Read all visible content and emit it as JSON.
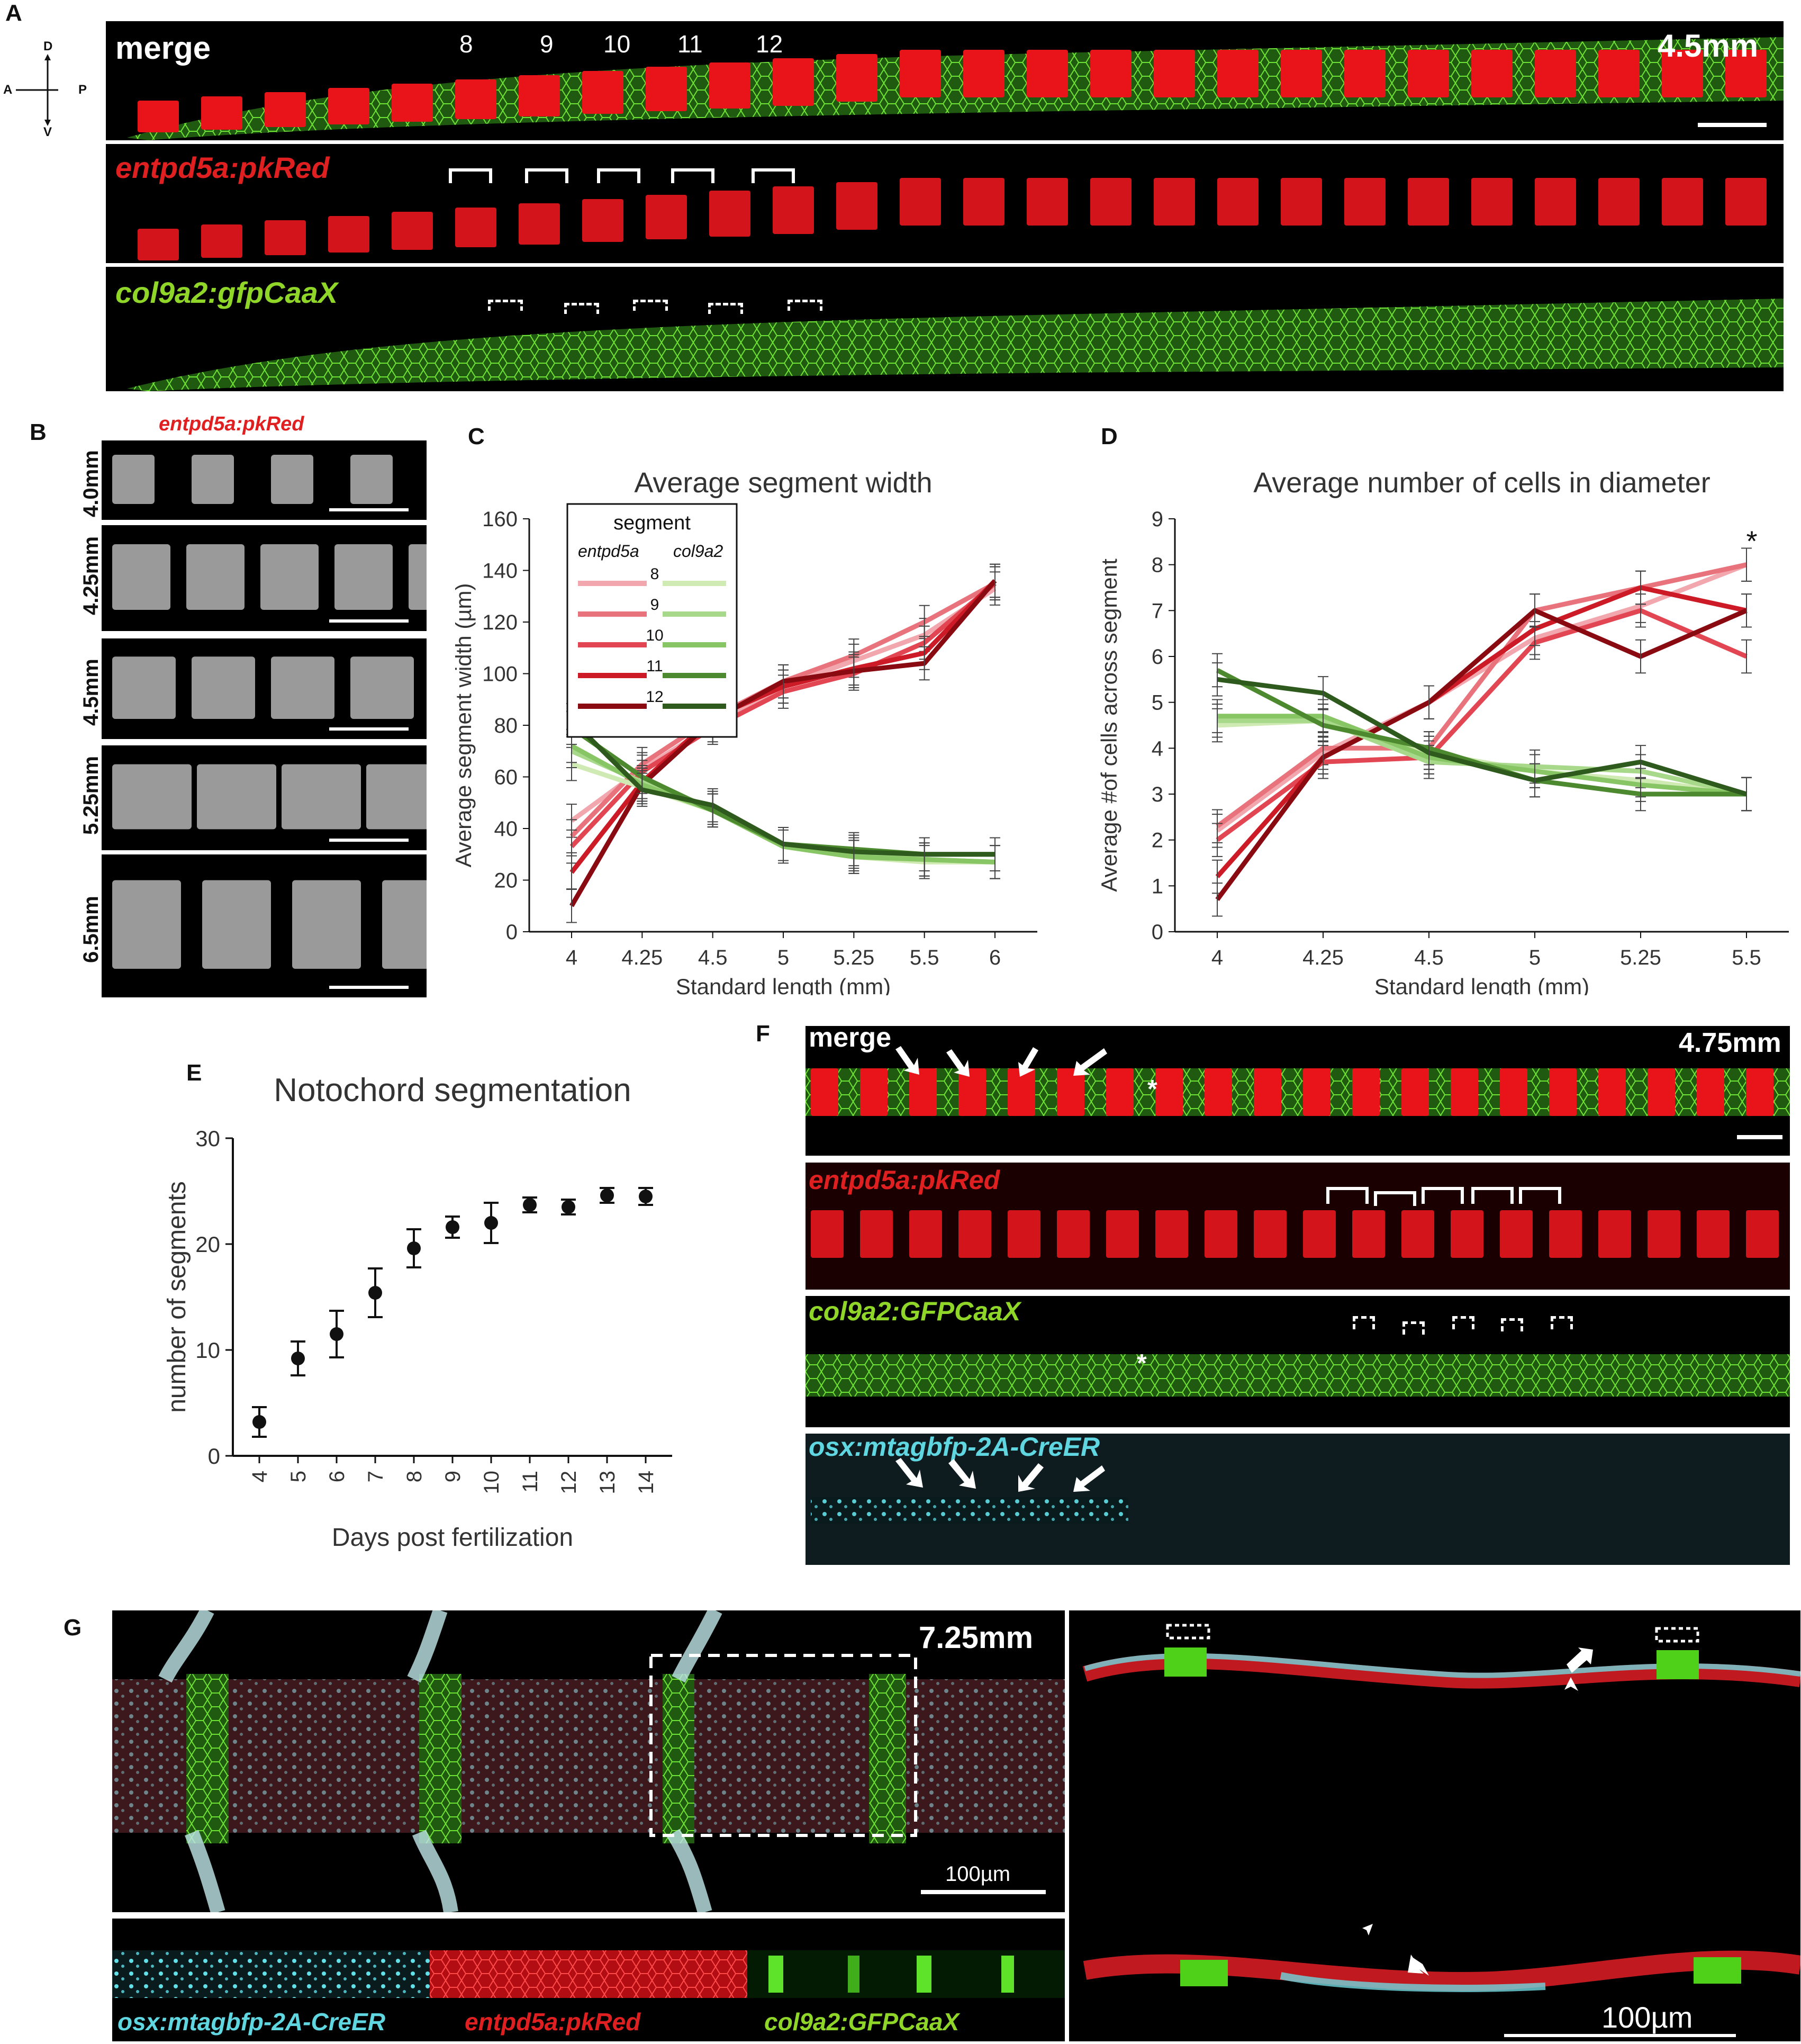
{
  "panels": {
    "A": {
      "letter": "A",
      "axis": {
        "d": "D",
        "v": "V",
        "a": "A",
        "p": "P"
      },
      "merge_label": "merge",
      "size_label": "4.5mm",
      "segment_numbers": [
        "8",
        "9",
        "10",
        "11",
        "12"
      ],
      "red_label": "entpd5a:pkRed",
      "green_label": "col9a2:gfpCaaX"
    },
    "B": {
      "letter": "B",
      "title": "entpd5a:pkRed",
      "stages": [
        "4.0mm",
        "4.25mm",
        "4.5mm",
        "5.25mm",
        "6.5mm"
      ]
    },
    "C": {
      "letter": "C"
    },
    "D": {
      "letter": "D"
    },
    "E": {
      "letter": "E"
    },
    "F": {
      "letter": "F",
      "merge_label": "merge",
      "size_label": "4.75mm",
      "red_label": "entpd5a:pkRed",
      "green_label": "col9a2:GFPCaaX",
      "cyan_label": "osx:mtagbfp-2A-CreER",
      "asterisk": "*"
    },
    "G": {
      "letter": "G",
      "size_label": "7.25mm",
      "scale_left": "100µm",
      "scale_right": "100µm",
      "cyan_label": "osx:mtagbfp-2A-CreER",
      "red_label": "entpd5a:pkRed",
      "green_label": "col9a2:GFPCaaX"
    }
  },
  "colors": {
    "red": "#e8141a",
    "green": "#4fd11a",
    "cyan": "#62e0e8",
    "red_label": "#e02020",
    "green_label": "#8fd629",
    "cyan_label": "#5fd6e0"
  },
  "chart_data": [
    {
      "panel": "C",
      "type": "line",
      "title": "Average segment width",
      "xlabel": "Standard length (mm)",
      "ylabel": "Average segment width (µm)",
      "categories": [
        "4",
        "4.25",
        "4.5",
        "5",
        "5.25",
        "5.5",
        "6"
      ],
      "ylim": [
        0,
        160
      ],
      "yticks": [
        0,
        20,
        40,
        60,
        80,
        100,
        120,
        140,
        160
      ],
      "legend_title": "segment",
      "legend_cols": [
        "entpd5a",
        "col9a2"
      ],
      "legend_rows": [
        "8",
        "9",
        "10",
        "11",
        "12"
      ],
      "series": [
        {
          "name": "8",
          "group": "entpd5a",
          "color": "#f2a6ad",
          "values": [
            43,
            63,
            80,
            95,
            105,
            115,
            133
          ]
        },
        {
          "name": "9",
          "group": "entpd5a",
          "color": "#e9737c",
          "values": [
            37,
            65,
            83,
            97,
            107,
            120,
            135
          ]
        },
        {
          "name": "10",
          "group": "entpd5a",
          "color": "#e14652",
          "values": [
            33,
            62,
            79,
            93,
            100,
            112,
            135
          ]
        },
        {
          "name": "11",
          "group": "entpd5a",
          "color": "#cc1a26",
          "values": [
            23,
            58,
            83,
            95,
            102,
            108,
            136
          ]
        },
        {
          "name": "12",
          "group": "entpd5a",
          "color": "#8a0a12",
          "values": [
            10,
            57,
            82,
            97,
            101,
            104,
            136
          ]
        },
        {
          "name": "8",
          "group": "col9a2",
          "color": "#cfeab3",
          "values": [
            65,
            56,
            47,
            34,
            29,
            27,
            27
          ]
        },
        {
          "name": "9",
          "group": "col9a2",
          "color": "#a8d88a",
          "values": [
            70,
            58,
            48,
            34,
            30,
            28,
            27
          ]
        },
        {
          "name": "10",
          "group": "col9a2",
          "color": "#88c565",
          "values": [
            72,
            57,
            47,
            33,
            29,
            28,
            27
          ]
        },
        {
          "name": "11",
          "group": "col9a2",
          "color": "#4d8a2f",
          "values": [
            79,
            60,
            47,
            34,
            32,
            30,
            30
          ]
        },
        {
          "name": "12",
          "group": "col9a2",
          "color": "#2e5a1d",
          "values": [
            82,
            55,
            49,
            34,
            31,
            30,
            30
          ]
        }
      ]
    },
    {
      "panel": "D",
      "type": "line",
      "title": "Average number of cells in diameter",
      "xlabel": "Standard length (mm)",
      "ylabel": "Average #of cells across segment",
      "categories": [
        "4",
        "4.25",
        "4.5",
        "5",
        "5.25",
        "5.5"
      ],
      "ylim": [
        0,
        9
      ],
      "yticks": [
        0,
        1,
        2,
        3,
        4,
        5,
        6,
        7,
        8,
        9
      ],
      "annotation": "*",
      "series": [
        {
          "name": "8",
          "group": "entpd5a",
          "color": "#f2a6ad",
          "values": [
            2.2,
            3.9,
            5.0,
            6.4,
            7.1,
            8.0
          ]
        },
        {
          "name": "9",
          "group": "entpd5a",
          "color": "#e9737c",
          "values": [
            2.3,
            4.0,
            4.0,
            7.0,
            7.5,
            8.0
          ]
        },
        {
          "name": "10",
          "group": "entpd5a",
          "color": "#e14652",
          "values": [
            2.0,
            3.7,
            3.8,
            6.3,
            7.0,
            6.0
          ]
        },
        {
          "name": "11",
          "group": "entpd5a",
          "color": "#cc1a26",
          "values": [
            1.2,
            3.8,
            5.0,
            6.6,
            7.5,
            7.0
          ]
        },
        {
          "name": "12",
          "group": "entpd5a",
          "color": "#8a0a12",
          "values": [
            0.7,
            3.8,
            5.0,
            7.0,
            6.0,
            7.0
          ]
        },
        {
          "name": "8",
          "group": "col9a2",
          "color": "#cfeab3",
          "values": [
            4.5,
            4.6,
            3.9,
            3.5,
            3.3,
            3.0
          ]
        },
        {
          "name": "9",
          "group": "col9a2",
          "color": "#a8d88a",
          "values": [
            4.6,
            4.6,
            3.7,
            3.6,
            3.5,
            3.0
          ]
        },
        {
          "name": "10",
          "group": "col9a2",
          "color": "#88c565",
          "values": [
            4.7,
            4.7,
            3.8,
            3.5,
            3.2,
            3.0
          ]
        },
        {
          "name": "11",
          "group": "col9a2",
          "color": "#4d8a2f",
          "values": [
            5.7,
            4.5,
            4.0,
            3.3,
            3.0,
            3.0
          ]
        },
        {
          "name": "12",
          "group": "col9a2",
          "color": "#2e5a1d",
          "values": [
            5.5,
            5.2,
            3.9,
            3.3,
            3.7,
            3.0
          ]
        }
      ]
    },
    {
      "panel": "E",
      "type": "scatter",
      "title": "Notochord segmentation",
      "xlabel": "Days post fertilization",
      "ylabel": "number of segments",
      "categories": [
        "4",
        "5",
        "6",
        "7",
        "8",
        "9",
        "10",
        "11",
        "12",
        "13",
        "14"
      ],
      "values": [
        3.2,
        9.2,
        11.5,
        15.4,
        19.6,
        21.6,
        22.0,
        23.7,
        23.5,
        24.6,
        24.5
      ],
      "errors": [
        1.4,
        1.6,
        2.2,
        2.3,
        1.8,
        1.0,
        1.9,
        0.7,
        0.7,
        0.7,
        0.8
      ],
      "ylim": [
        0,
        30
      ],
      "yticks": [
        0,
        10,
        20,
        30
      ]
    }
  ]
}
